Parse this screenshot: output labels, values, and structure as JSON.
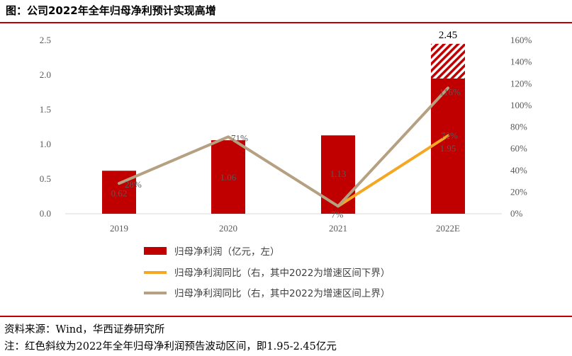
{
  "header": {
    "title": "图：公司2022年全年归母净利预计实现高增"
  },
  "footer": {
    "source": "资料来源：Wind，华西证券研究所",
    "note": "注：红色斜纹为2022年全年归母净利润预告波动区间，即1.95-2.45亿元"
  },
  "colors": {
    "bar": "#c00000",
    "line_lower": "#f5a623",
    "line_upper": "#b5a082",
    "rule": "#c00000",
    "axis": "#d9d9d9"
  },
  "chart_data": {
    "type": "bar",
    "categories": [
      "2019",
      "2020",
      "2021",
      "2022E"
    ],
    "bar_series": {
      "name": "归母净利润（亿元，左）",
      "values": [
        0.62,
        1.06,
        1.13,
        1.95
      ],
      "value_labels": [
        "0.62",
        "1.06",
        "1.13",
        "1.95"
      ],
      "range_upper": 2.45,
      "range_upper_label": "2.45"
    },
    "line_series": [
      {
        "name": "归母净利润同比（右，其中2022为增速区间下界）",
        "values": [
          null,
          null,
          7,
          72
        ],
        "value_labels": [
          "",
          "",
          "",
          "72%"
        ]
      },
      {
        "name": "归母净利润同比（右，其中2022为增速区间上界）",
        "values": [
          28,
          71,
          7,
          116
        ],
        "value_labels": [
          "28%",
          "71%",
          "7%",
          "116%"
        ]
      }
    ],
    "y_left": {
      "min": 0,
      "max": 2.5,
      "ticks": [
        "0.0",
        "0.5",
        "1.0",
        "1.5",
        "2.0",
        "2.5"
      ],
      "tick_values": [
        0,
        0.5,
        1.0,
        1.5,
        2.0,
        2.5
      ]
    },
    "y_right": {
      "min": 0,
      "max": 160,
      "ticks": [
        "0%",
        "20%",
        "40%",
        "60%",
        "80%",
        "100%",
        "120%",
        "140%",
        "160%"
      ],
      "tick_values": [
        0,
        20,
        40,
        60,
        80,
        100,
        120,
        140,
        160
      ]
    },
    "grid": false,
    "legend_position": "bottom"
  }
}
